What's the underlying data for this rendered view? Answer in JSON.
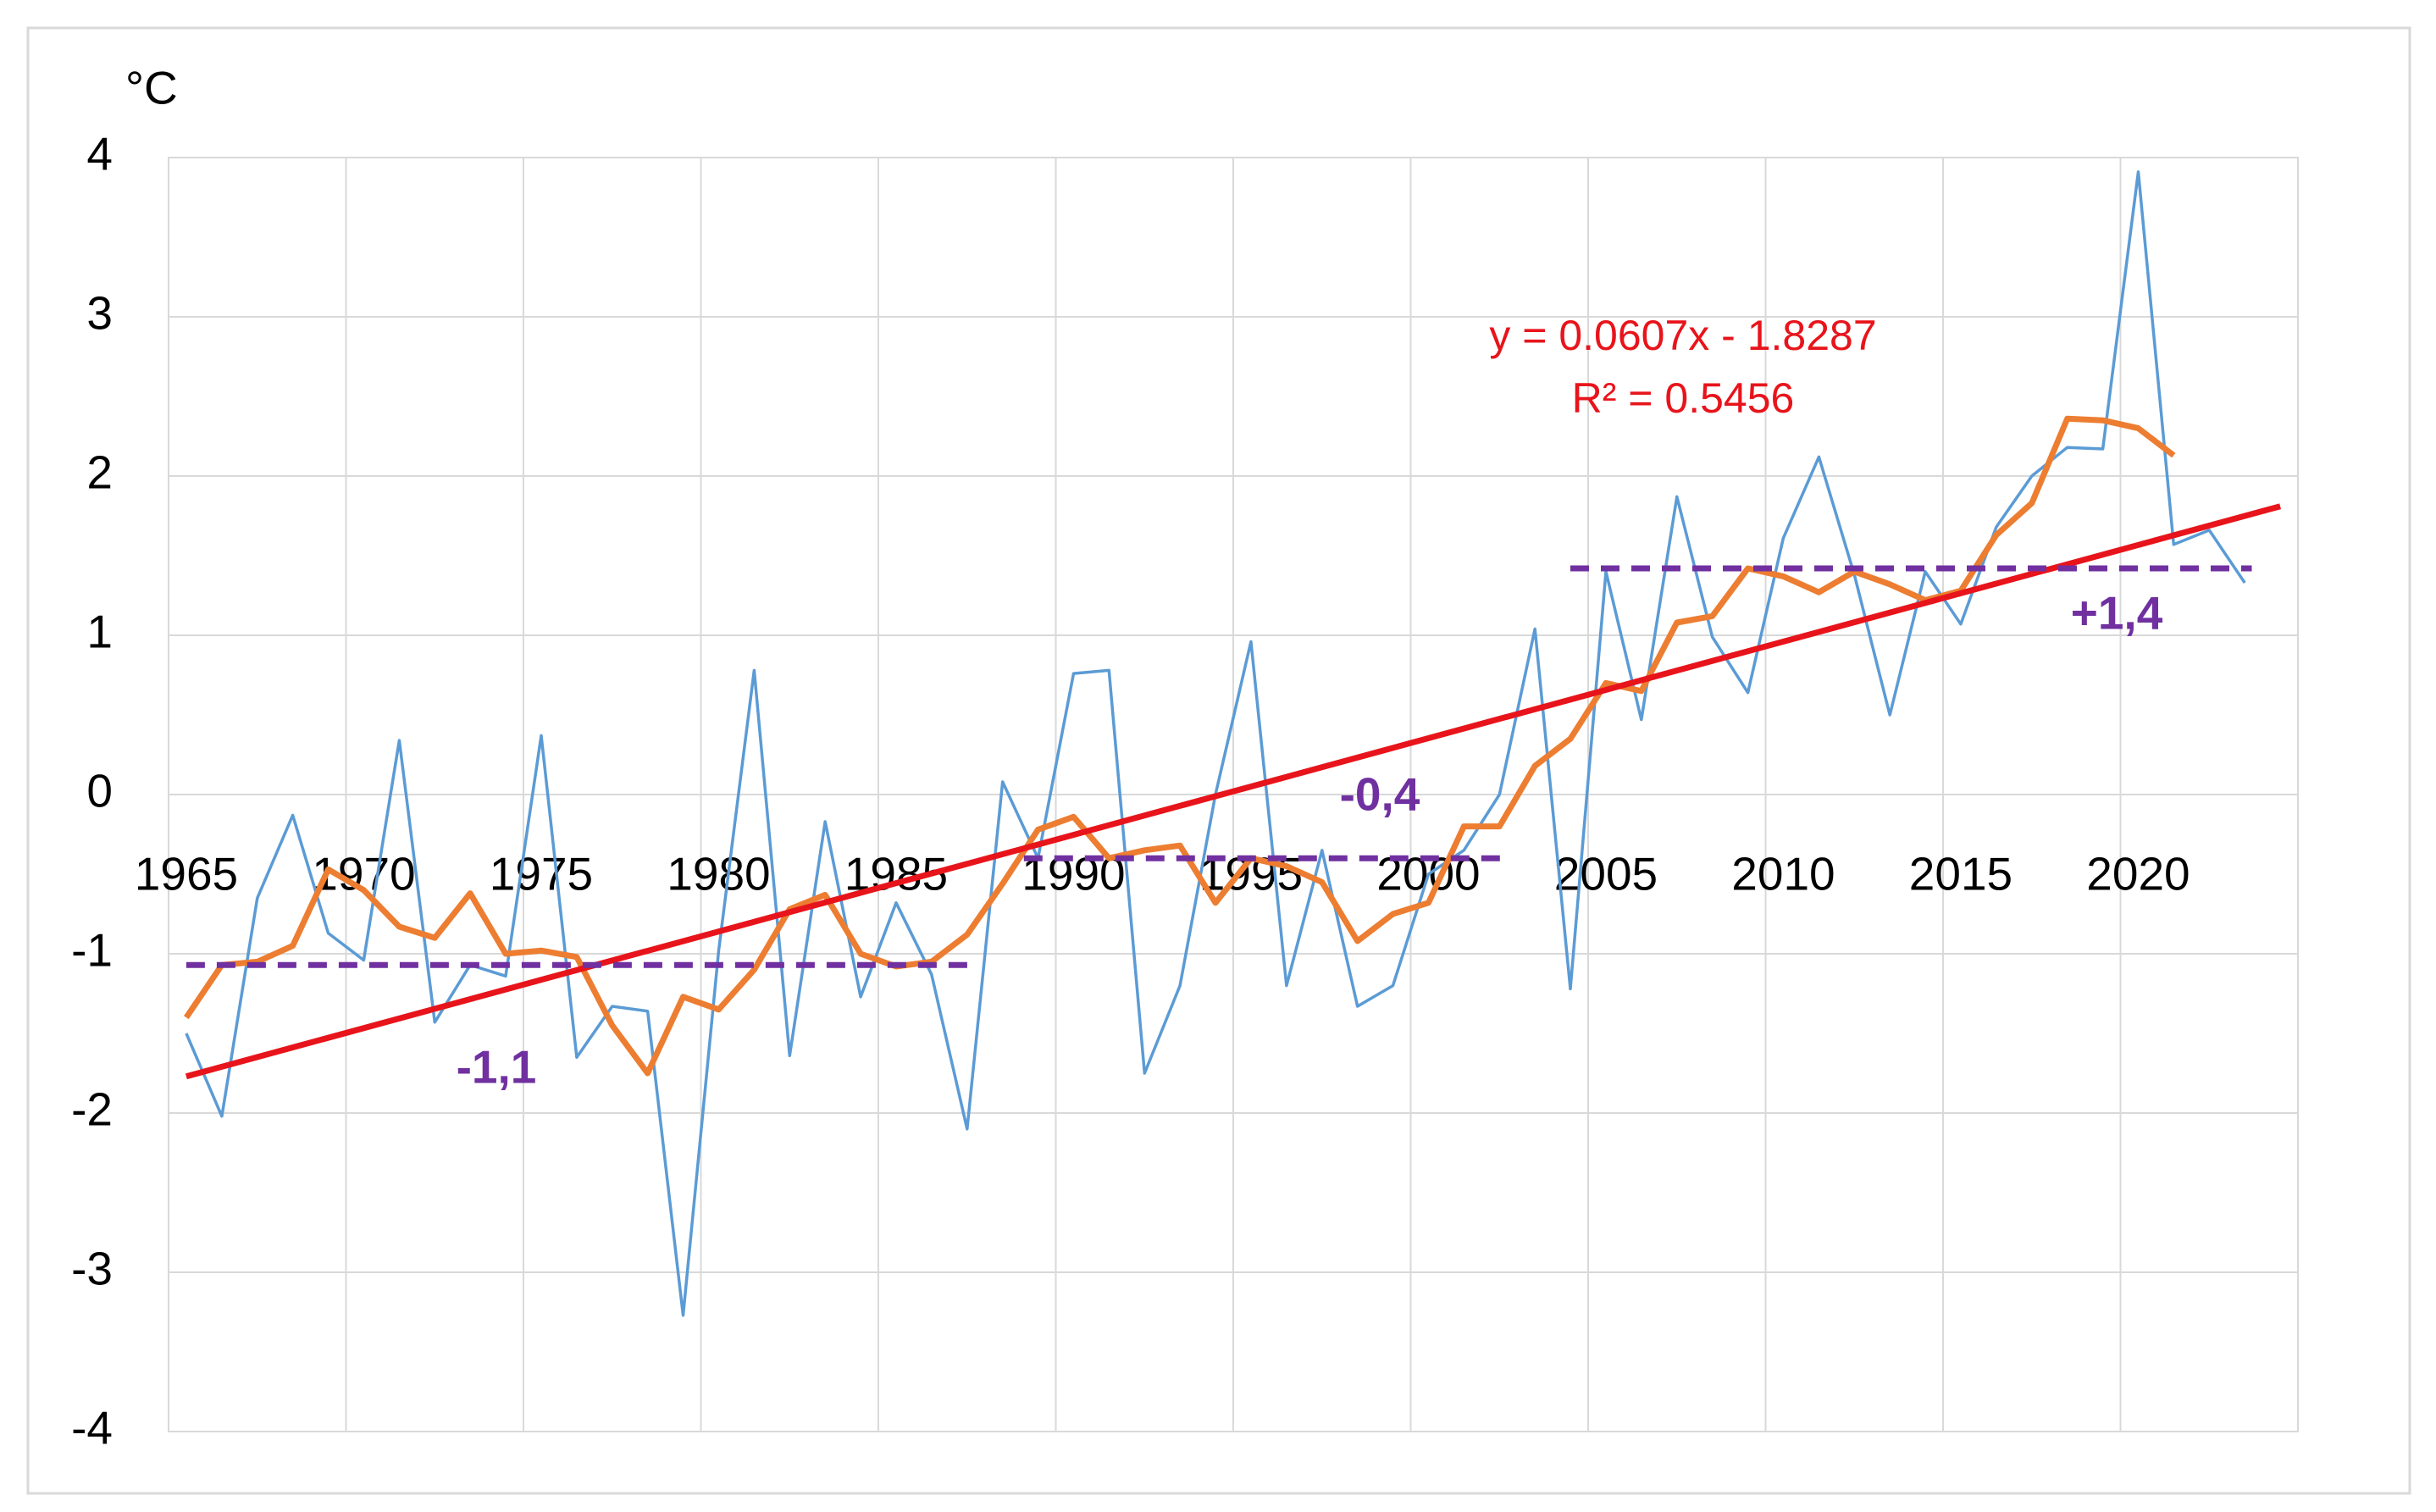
{
  "chart_data": {
    "type": "line",
    "ylabel": "°C",
    "xlim": [
      1964.5,
      2024.5
    ],
    "xticks": [
      1965,
      1970,
      1975,
      1980,
      1985,
      1990,
      1995,
      2000,
      2005,
      2010,
      2015,
      2020
    ],
    "ylim": [
      -4,
      4
    ],
    "yticks": [
      -4,
      -3,
      -2,
      -1,
      0,
      1,
      2,
      3,
      4
    ],
    "grid": true,
    "series": [
      {
        "color": "#5b9bd5",
        "width": 3.5,
        "style": "solid",
        "x": [
          1965,
          1966,
          1967,
          1968,
          1969,
          1970,
          1971,
          1972,
          1973,
          1974,
          1975,
          1976,
          1977,
          1978,
          1979,
          1980,
          1981,
          1982,
          1983,
          1984,
          1985,
          1986,
          1987,
          1988,
          1989,
          1990,
          1991,
          1992,
          1993,
          1994,
          1995,
          1996,
          1997,
          1998,
          1999,
          2000,
          2001,
          2002,
          2003,
          2004,
          2005,
          2006,
          2007,
          2008,
          2009,
          2010,
          2011,
          2012,
          2013,
          2014,
          2015,
          2016,
          2017,
          2018,
          2019,
          2020,
          2021,
          2022,
          2023
        ],
        "values": [
          -1.5,
          -2.02,
          -0.65,
          -0.13,
          -0.87,
          -1.04,
          0.34,
          -1.43,
          -1.07,
          -1.14,
          0.37,
          -1.65,
          -1.33,
          -1.36,
          -3.27,
          -0.98,
          0.78,
          -1.64,
          -0.17,
          -1.27,
          -0.68,
          -1.13,
          -2.1,
          0.08,
          -0.4,
          0.76,
          0.78,
          -1.75,
          -1.2,
          0.0,
          0.96,
          -1.2,
          -0.35,
          -1.33,
          -1.2,
          -0.5,
          -0.35,
          0.0,
          1.04,
          -1.22,
          1.4,
          0.47,
          1.87,
          0.99,
          0.64,
          1.61,
          2.12,
          1.38,
          0.5,
          1.4,
          1.07,
          1.68,
          2.0,
          2.18,
          2.17,
          3.91,
          1.57,
          1.66,
          1.33
        ]
      },
      {
        "color": "#ed7d31",
        "width": 7,
        "style": "solid",
        "x": [
          1965,
          1966,
          1967,
          1968,
          1969,
          1970,
          1971,
          1972,
          1973,
          1974,
          1975,
          1976,
          1977,
          1978,
          1979,
          1980,
          1981,
          1982,
          1983,
          1984,
          1985,
          1986,
          1987,
          1988,
          1989,
          1990,
          1991,
          1992,
          1993,
          1994,
          1995,
          1996,
          1997,
          1998,
          1999,
          2000,
          2001,
          2002,
          2003,
          2004,
          2005,
          2006,
          2007,
          2008,
          2009,
          2010,
          2011,
          2012,
          2013,
          2014,
          2015,
          2016,
          2017,
          2018,
          2019,
          2020,
          2021
        ],
        "values": [
          -1.4,
          -1.07,
          -1.05,
          -0.95,
          -0.47,
          -0.6,
          -0.83,
          -0.9,
          -0.62,
          -1.0,
          -0.98,
          -1.02,
          -1.45,
          -1.75,
          -1.27,
          -1.35,
          -1.1,
          -0.72,
          -0.63,
          -1.0,
          -1.08,
          -1.05,
          -0.88,
          -0.56,
          -0.22,
          -0.14,
          -0.4,
          -0.35,
          -0.32,
          -0.68,
          -0.4,
          -0.45,
          -0.55,
          -0.92,
          -0.75,
          -0.68,
          -0.2,
          -0.2,
          0.18,
          0.35,
          0.7,
          0.65,
          1.08,
          1.12,
          1.42,
          1.37,
          1.27,
          1.4,
          1.32,
          1.22,
          1.28,
          1.63,
          1.83,
          2.36,
          2.35,
          2.3,
          2.13
        ]
      },
      {
        "color": "#e8141b",
        "width": 7,
        "style": "solid",
        "x": [
          1965,
          2024
        ],
        "values": [
          -1.77,
          1.81
        ]
      },
      {
        "color": "#7030a0",
        "width": 7,
        "style": "dashed",
        "x": [
          1965,
          1987.1
        ],
        "values": [
          -1.07,
          -1.07
        ]
      },
      {
        "color": "#7030a0",
        "width": 7,
        "style": "dashed",
        "x": [
          1988.6,
          2002.2
        ],
        "values": [
          -0.4,
          -0.4
        ]
      },
      {
        "color": "#7030a0",
        "width": 7,
        "style": "dashed",
        "x": [
          2004,
          2023.2
        ],
        "values": [
          1.42,
          1.42
        ]
      }
    ],
    "annotations": [
      {
        "text": "y = 0.0607x - 1.8287",
        "color": "#e8141b"
      },
      {
        "text": "R² = 0.5456",
        "color": "#e8141b"
      },
      {
        "text": "-1,1",
        "color": "#7030a0"
      },
      {
        "text": "-0,4",
        "color": "#7030a0"
      },
      {
        "text": "+1,4",
        "color": "#7030a0"
      }
    ]
  }
}
